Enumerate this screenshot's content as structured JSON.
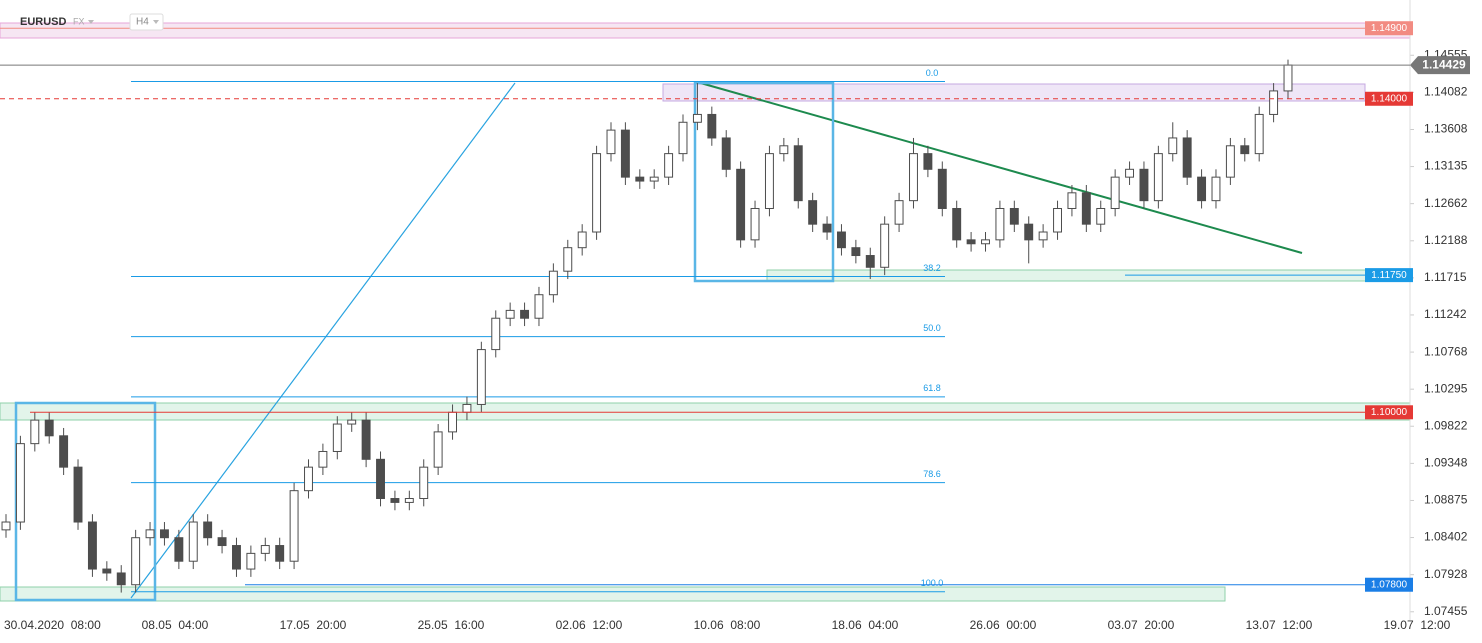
{
  "chart_data": {
    "type": "candlestick",
    "title": "EURUSD",
    "market": "FX",
    "timeframe": "H4",
    "ylim": [
      1.0735,
      1.1526
    ],
    "yticks": [
      1.14555,
      1.14082,
      1.13608,
      1.13135,
      1.12662,
      1.12188,
      1.11715,
      1.11242,
      1.10768,
      1.10295,
      1.09822,
      1.09348,
      1.08875,
      1.08402,
      1.07928,
      1.07455
    ],
    "x_labels": [
      "30.04.2020  08:00",
      "08.05  04:00",
      "17.05  20:00",
      "25.05  16:00",
      "02.06  12:00",
      "10.06  08:00",
      "18.06  04:00",
      "26.06  00:00",
      "03.07  20:00",
      "13.07  12:00",
      "19.07  12:00"
    ],
    "up_color": "#ffffff",
    "down_color": "#4d4d4d",
    "open": [
      1.085,
      1.086,
      1.096,
      1.099,
      1.097,
      1.093,
      1.086,
      1.08,
      1.0795,
      1.078,
      1.084,
      1.085,
      1.084,
      1.081,
      1.086,
      1.084,
      1.083,
      1.08,
      1.082,
      1.083,
      1.081,
      1.09,
      1.093,
      1.095,
      1.0985,
      1.099,
      1.094,
      1.089,
      1.0885,
      1.089,
      1.093,
      1.0975,
      1.1,
      1.101,
      1.108,
      1.112,
      1.113,
      1.112,
      1.115,
      1.118,
      1.121,
      1.123,
      1.133,
      1.136,
      1.13,
      1.1295,
      1.13,
      1.133,
      1.137,
      1.138,
      1.135,
      1.131,
      1.122,
      1.126,
      1.133,
      1.134,
      1.127,
      1.124,
      1.123,
      1.121,
      1.12,
      1.1185,
      1.124,
      1.127,
      1.133,
      1.131,
      1.126,
      1.122,
      1.1215,
      1.122,
      1.126,
      1.124,
      1.122,
      1.123,
      1.126,
      1.128,
      1.124,
      1.126,
      1.13,
      1.131,
      1.127,
      1.133,
      1.135,
      1.13,
      1.127,
      1.13,
      1.134,
      1.133,
      1.138,
      1.141
    ],
    "high": [
      1.087,
      1.097,
      1.1,
      1.1,
      1.098,
      1.094,
      1.087,
      1.081,
      1.0805,
      1.085,
      1.086,
      1.086,
      1.085,
      1.087,
      1.087,
      1.085,
      1.084,
      1.083,
      1.084,
      1.084,
      1.091,
      1.094,
      1.096,
      1.0995,
      1.1,
      1.1,
      1.095,
      1.09,
      1.09,
      1.094,
      1.0985,
      1.101,
      1.102,
      1.109,
      1.113,
      1.114,
      1.114,
      1.116,
      1.119,
      1.122,
      1.124,
      1.134,
      1.137,
      1.137,
      1.131,
      1.131,
      1.134,
      1.138,
      1.142,
      1.139,
      1.136,
      1.132,
      1.127,
      1.134,
      1.135,
      1.135,
      1.128,
      1.125,
      1.124,
      1.122,
      1.121,
      1.125,
      1.128,
      1.135,
      1.134,
      1.132,
      1.127,
      1.123,
      1.123,
      1.127,
      1.127,
      1.125,
      1.124,
      1.127,
      1.129,
      1.129,
      1.127,
      1.131,
      1.132,
      1.132,
      1.134,
      1.137,
      1.136,
      1.131,
      1.131,
      1.135,
      1.135,
      1.139,
      1.142,
      1.145
    ],
    "low": [
      1.084,
      1.085,
      1.095,
      1.096,
      1.092,
      1.085,
      1.079,
      1.0785,
      1.077,
      1.077,
      1.083,
      1.083,
      1.08,
      1.08,
      1.083,
      1.082,
      1.079,
      1.079,
      1.081,
      1.08,
      1.08,
      1.089,
      1.092,
      1.094,
      1.0975,
      1.093,
      1.088,
      1.0875,
      1.0875,
      1.088,
      1.092,
      1.0965,
      1.099,
      1.1,
      1.107,
      1.111,
      1.111,
      1.111,
      1.114,
      1.117,
      1.12,
      1.122,
      1.132,
      1.129,
      1.1285,
      1.1285,
      1.129,
      1.132,
      1.136,
      1.134,
      1.13,
      1.121,
      1.121,
      1.125,
      1.132,
      1.126,
      1.123,
      1.122,
      1.12,
      1.119,
      1.117,
      1.1175,
      1.123,
      1.126,
      1.13,
      1.125,
      1.121,
      1.1205,
      1.1205,
      1.121,
      1.123,
      1.119,
      1.121,
      1.122,
      1.125,
      1.123,
      1.123,
      1.125,
      1.129,
      1.126,
      1.126,
      1.132,
      1.129,
      1.126,
      1.126,
      1.129,
      1.132,
      1.132,
      1.137,
      1.14
    ],
    "close": [
      1.086,
      1.096,
      1.099,
      1.097,
      1.093,
      1.086,
      1.08,
      1.0795,
      1.078,
      1.084,
      1.085,
      1.084,
      1.081,
      1.086,
      1.084,
      1.083,
      1.08,
      1.082,
      1.083,
      1.081,
      1.09,
      1.093,
      1.095,
      1.0985,
      1.099,
      1.094,
      1.089,
      1.0885,
      1.089,
      1.093,
      1.0975,
      1.1,
      1.101,
      1.108,
      1.112,
      1.113,
      1.112,
      1.115,
      1.118,
      1.121,
      1.123,
      1.133,
      1.136,
      1.13,
      1.1295,
      1.13,
      1.133,
      1.137,
      1.138,
      1.135,
      1.131,
      1.122,
      1.126,
      1.133,
      1.134,
      1.127,
      1.124,
      1.123,
      1.121,
      1.12,
      1.1185,
      1.124,
      1.127,
      1.133,
      1.131,
      1.126,
      1.122,
      1.1215,
      1.122,
      1.126,
      1.124,
      1.122,
      1.123,
      1.126,
      1.128,
      1.124,
      1.126,
      1.13,
      1.131,
      1.127,
      1.133,
      1.135,
      1.13,
      1.127,
      1.13,
      1.134,
      1.133,
      1.138,
      1.141,
      1.1443
    ],
    "price_lines": [
      {
        "value": 1.149,
        "label": "1.14900",
        "color": "#f28b82"
      },
      {
        "value": 1.14429,
        "label": "1.14429",
        "color": "#777777"
      },
      {
        "value": 1.14,
        "label": "1.14000",
        "color": "#e53935"
      },
      {
        "value": 1.1175,
        "label": "1.11750",
        "color": "#1a9be6"
      },
      {
        "value": 1.1,
        "label": "1.10000",
        "color": "#e53935"
      },
      {
        "value": 1.078,
        "label": "1.07800",
        "color": "#1a7ee6"
      }
    ],
    "fibonacci": {
      "high": 1.1422,
      "low": 1.0771,
      "color": "#1a9be6",
      "levels": [
        {
          "value": 0,
          "label": "0.0"
        },
        38.2,
        {
          "value": 50,
          "label": "50.0"
        },
        61.8,
        78.6,
        {
          "value": 100,
          "label": "100.0"
        }
      ]
    }
  }
}
